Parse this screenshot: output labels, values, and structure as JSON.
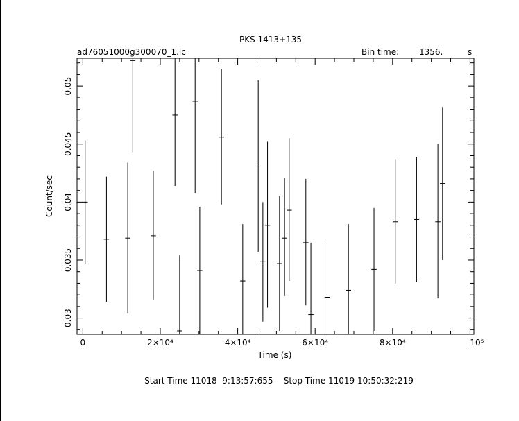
{
  "chart_data": {
    "type": "scatter",
    "title": "PKS 1413+135",
    "file_label": "ad76051000g300070_1.lc",
    "bin_time_label": "Bin time:",
    "bin_time_value": "1356.",
    "bin_time_unit": "s",
    "xlabel": "Time (s)",
    "ylabel": "Count/sec",
    "footer": "Start Time 11018  9:13:57:655    Stop Time 11019 10:50:32:219",
    "xlim": [
      -1500,
      101000
    ],
    "ylim": [
      0.0286,
      0.0524
    ],
    "x_ticks": [
      {
        "value": 0,
        "label": "0"
      },
      {
        "value": 20000,
        "label": "2×10⁴"
      },
      {
        "value": 40000,
        "label": "4×10⁴"
      },
      {
        "value": 60000,
        "label": "6×10⁴"
      },
      {
        "value": 80000,
        "label": "8×10⁴"
      },
      {
        "value": 100000,
        "label": "10⁵"
      }
    ],
    "y_ticks": [
      {
        "value": 0.03,
        "label": "0.03"
      },
      {
        "value": 0.035,
        "label": "0.035"
      },
      {
        "value": 0.04,
        "label": "0.04"
      },
      {
        "value": 0.045,
        "label": "0.045"
      },
      {
        "value": 0.05,
        "label": "0.05"
      }
    ],
    "series": [
      {
        "points": [
          {
            "x": 600,
            "y": 0.04,
            "lo": 0.0347,
            "hi": 0.0453,
            "xerr": 680
          },
          {
            "x": 6100,
            "y": 0.0368,
            "lo": 0.0314,
            "hi": 0.0422,
            "xerr": 680
          },
          {
            "x": 11600,
            "y": 0.0369,
            "lo": 0.0304,
            "hi": 0.0434,
            "xerr": 680
          },
          {
            "x": 12900,
            "y": 0.0522,
            "lo": 0.0443,
            "hi": 0.0524,
            "xerr": 680
          },
          {
            "x": 18200,
            "y": 0.0371,
            "lo": 0.0316,
            "hi": 0.0427,
            "xerr": 680
          },
          {
            "x": 23800,
            "y": 0.0475,
            "lo": 0.0414,
            "hi": 0.0524,
            "xerr": 680
          },
          {
            "x": 25000,
            "y": 0.0289,
            "lo": 0.0286,
            "hi": 0.0354,
            "xerr": 680
          },
          {
            "x": 29000,
            "y": 0.0487,
            "lo": 0.0408,
            "hi": 0.0524,
            "xerr": 680
          },
          {
            "x": 30200,
            "y": 0.0341,
            "lo": 0.0286,
            "hi": 0.0396,
            "xerr": 680
          },
          {
            "x": 35800,
            "y": 0.0456,
            "lo": 0.0398,
            "hi": 0.0515,
            "xerr": 680
          },
          {
            "x": 41300,
            "y": 0.0332,
            "lo": 0.0286,
            "hi": 0.0381,
            "xerr": 680
          },
          {
            "x": 45300,
            "y": 0.0431,
            "lo": 0.0357,
            "hi": 0.0505,
            "xerr": 680
          },
          {
            "x": 46500,
            "y": 0.0349,
            "lo": 0.0297,
            "hi": 0.04,
            "xerr": 680
          },
          {
            "x": 47700,
            "y": 0.038,
            "lo": 0.0309,
            "hi": 0.0452,
            "xerr": 680
          },
          {
            "x": 50800,
            "y": 0.0347,
            "lo": 0.0289,
            "hi": 0.0405,
            "xerr": 680
          },
          {
            "x": 52100,
            "y": 0.0369,
            "lo": 0.0319,
            "hi": 0.0421,
            "xerr": 680
          },
          {
            "x": 53300,
            "y": 0.0393,
            "lo": 0.0332,
            "hi": 0.0455,
            "xerr": 680
          },
          {
            "x": 57600,
            "y": 0.0365,
            "lo": 0.0311,
            "hi": 0.042,
            "xerr": 680
          },
          {
            "x": 58900,
            "y": 0.0303,
            "lo": 0.0286,
            "hi": 0.0365,
            "xerr": 680
          },
          {
            "x": 63100,
            "y": 0.0318,
            "lo": 0.0286,
            "hi": 0.0367,
            "xerr": 680
          },
          {
            "x": 68600,
            "y": 0.0324,
            "lo": 0.0286,
            "hi": 0.0381,
            "xerr": 680
          },
          {
            "x": 75200,
            "y": 0.0342,
            "lo": 0.0289,
            "hi": 0.0395,
            "xerr": 680
          },
          {
            "x": 80700,
            "y": 0.0383,
            "lo": 0.033,
            "hi": 0.0437,
            "xerr": 680
          },
          {
            "x": 86200,
            "y": 0.0385,
            "lo": 0.0331,
            "hi": 0.0439,
            "xerr": 680
          },
          {
            "x": 91700,
            "y": 0.0383,
            "lo": 0.0317,
            "hi": 0.045,
            "xerr": 680
          },
          {
            "x": 92900,
            "y": 0.0416,
            "lo": 0.035,
            "hi": 0.0482,
            "xerr": 680
          }
        ]
      }
    ],
    "grid": false
  }
}
